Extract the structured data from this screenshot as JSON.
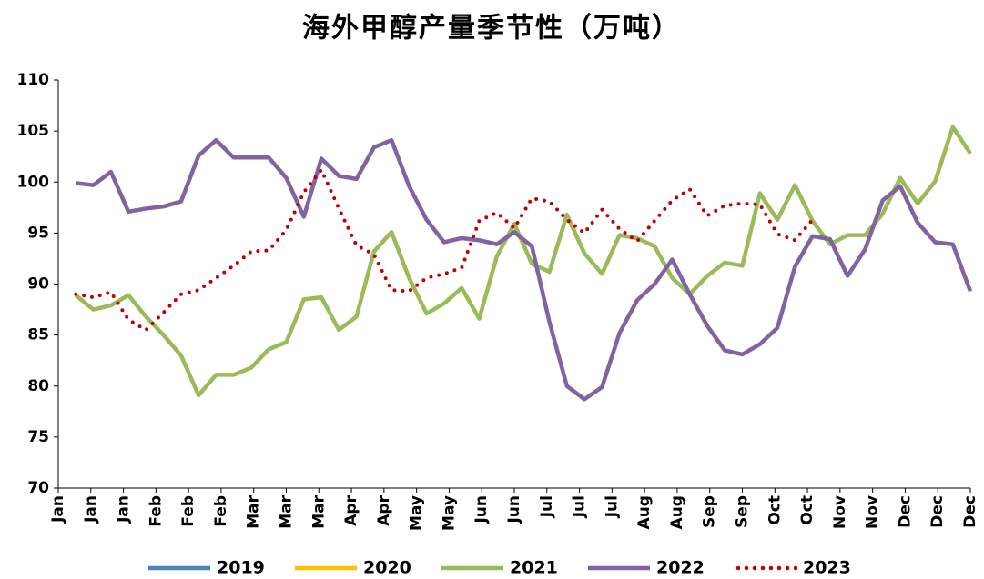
{
  "chart_data": {
    "type": "line",
    "title": "海外甲醇产量季节性（万吨）",
    "x": [
      1,
      2,
      3,
      4,
      5,
      6,
      7,
      8,
      9,
      10,
      11,
      12,
      13,
      14,
      15,
      16,
      17,
      18,
      19,
      20,
      21,
      22,
      23,
      24,
      25,
      26,
      27,
      28,
      29,
      30,
      31,
      32,
      33,
      34,
      35,
      36,
      37,
      38,
      39,
      40,
      41,
      42,
      43,
      44,
      45,
      46,
      47,
      48,
      49,
      50,
      51,
      52
    ],
    "xlim": [
      0,
      52
    ],
    "xticks": [
      {
        "value": 0,
        "label": "Jan"
      },
      {
        "value": 1.857,
        "label": "Jan"
      },
      {
        "value": 3.714,
        "label": "Jan"
      },
      {
        "value": 5.571,
        "label": "Feb"
      },
      {
        "value": 7.429,
        "label": "Feb"
      },
      {
        "value": 9.286,
        "label": "Feb"
      },
      {
        "value": 11.143,
        "label": "Mar"
      },
      {
        "value": 13,
        "label": "Mar"
      },
      {
        "value": 14.857,
        "label": "Mar"
      },
      {
        "value": 16.714,
        "label": "Apr"
      },
      {
        "value": 18.571,
        "label": "Apr"
      },
      {
        "value": 20.429,
        "label": "May"
      },
      {
        "value": 22.286,
        "label": "May"
      },
      {
        "value": 24.143,
        "label": "Jun"
      },
      {
        "value": 26,
        "label": "Jun"
      },
      {
        "value": 27.857,
        "label": "Jul"
      },
      {
        "value": 29.714,
        "label": "Jul"
      },
      {
        "value": 31.571,
        "label": "Jul"
      },
      {
        "value": 33.429,
        "label": "Aug"
      },
      {
        "value": 35.286,
        "label": "Aug"
      },
      {
        "value": 37.143,
        "label": "Sep"
      },
      {
        "value": 39,
        "label": "Sep"
      },
      {
        "value": 40.857,
        "label": "Oct"
      },
      {
        "value": 42.714,
        "label": "Oct"
      },
      {
        "value": 44.571,
        "label": "Nov"
      },
      {
        "value": 46.429,
        "label": "Nov"
      },
      {
        "value": 48.286,
        "label": "Dec"
      },
      {
        "value": 50.143,
        "label": "Dec"
      },
      {
        "value": 52,
        "label": "Dec"
      }
    ],
    "ylim": [
      70,
      110
    ],
    "yticks": [
      70,
      75,
      80,
      85,
      90,
      95,
      100,
      105,
      110
    ],
    "legend": "bottom",
    "series": [
      {
        "name": "2019",
        "color": "#4f81bd",
        "style": "solid",
        "values": [
          null,
          null,
          null,
          null,
          null,
          null,
          null,
          null,
          null,
          null,
          null,
          null,
          null,
          null,
          null,
          null,
          null,
          null,
          null,
          null,
          null,
          null,
          null,
          null,
          null,
          null,
          null,
          null,
          null,
          null,
          null,
          null,
          null,
          null,
          null,
          null,
          null,
          null,
          null,
          null,
          null,
          null,
          null,
          null,
          null,
          null,
          null,
          null,
          null,
          null,
          null,
          null
        ]
      },
      {
        "name": "2020",
        "color": "#ffc000",
        "style": "solid",
        "values": [
          null,
          null,
          null,
          null,
          null,
          null,
          null,
          null,
          null,
          null,
          null,
          null,
          null,
          null,
          null,
          null,
          null,
          null,
          null,
          null,
          null,
          null,
          null,
          null,
          null,
          null,
          null,
          null,
          null,
          null,
          null,
          null,
          null,
          null,
          null,
          null,
          null,
          null,
          null,
          null,
          null,
          null,
          null,
          null,
          null,
          null,
          null,
          null,
          null,
          null,
          null,
          null
        ]
      },
      {
        "name": "2021",
        "color": "#9bbb59",
        "style": "solid",
        "values": [
          88.9,
          87.5,
          87.9,
          88.9,
          86.8,
          85,
          83,
          79.1,
          81.1,
          81.1,
          81.8,
          83.6,
          84.3,
          88.5,
          88.7,
          85.5,
          86.8,
          93.2,
          95.1,
          90.6,
          87.1,
          88.1,
          89.6,
          86.6,
          92.7,
          95.9,
          92,
          91.2,
          96.8,
          93,
          91,
          94.8,
          94.5,
          93.7,
          90.6,
          89,
          90.8,
          92.1,
          91.8,
          98.9,
          96.3,
          99.7,
          96.2,
          93.9,
          94.8,
          94.8,
          96.9,
          100.4,
          97.9,
          100.1,
          105.4,
          102.8
        ]
      },
      {
        "name": "2022",
        "color": "#8064a2",
        "style": "solid",
        "values": [
          99.9,
          99.7,
          101,
          97.1,
          97.4,
          97.6,
          98.1,
          102.6,
          104.1,
          102.4,
          102.4,
          102.4,
          100.4,
          96.6,
          102.3,
          100.6,
          100.3,
          103.4,
          104.1,
          99.6,
          96.3,
          94.1,
          94.5,
          94.3,
          93.9,
          95.1,
          93.7,
          86.3,
          80,
          78.7,
          79.9,
          85.2,
          88.4,
          90,
          92.4,
          89,
          85.9,
          83.5,
          83.1,
          84.1,
          85.7,
          91.7,
          94.7,
          94.4,
          90.8,
          93.4,
          98.2,
          99.6,
          96,
          94.1,
          93.9,
          89.3
        ]
      },
      {
        "name": "2023",
        "color": "#c00000",
        "style": "dotted",
        "values": [
          89,
          88.7,
          89.2,
          86.5,
          85.5,
          87.2,
          89,
          89.4,
          90.6,
          91.8,
          93.2,
          93.3,
          95.3,
          99,
          101.2,
          97.4,
          93.8,
          92.9,
          89.4,
          89.3,
          90.6,
          91,
          91.6,
          96.2,
          97,
          95.5,
          98.4,
          98.1,
          96.3,
          95,
          97.3,
          95.4,
          94.2,
          96.2,
          98.2,
          99.3,
          96.7,
          97.7,
          97.9,
          97.8,
          94.9,
          94.3,
          96.3,
          null,
          null,
          null,
          null,
          null,
          null,
          null,
          null,
          null
        ]
      }
    ]
  }
}
